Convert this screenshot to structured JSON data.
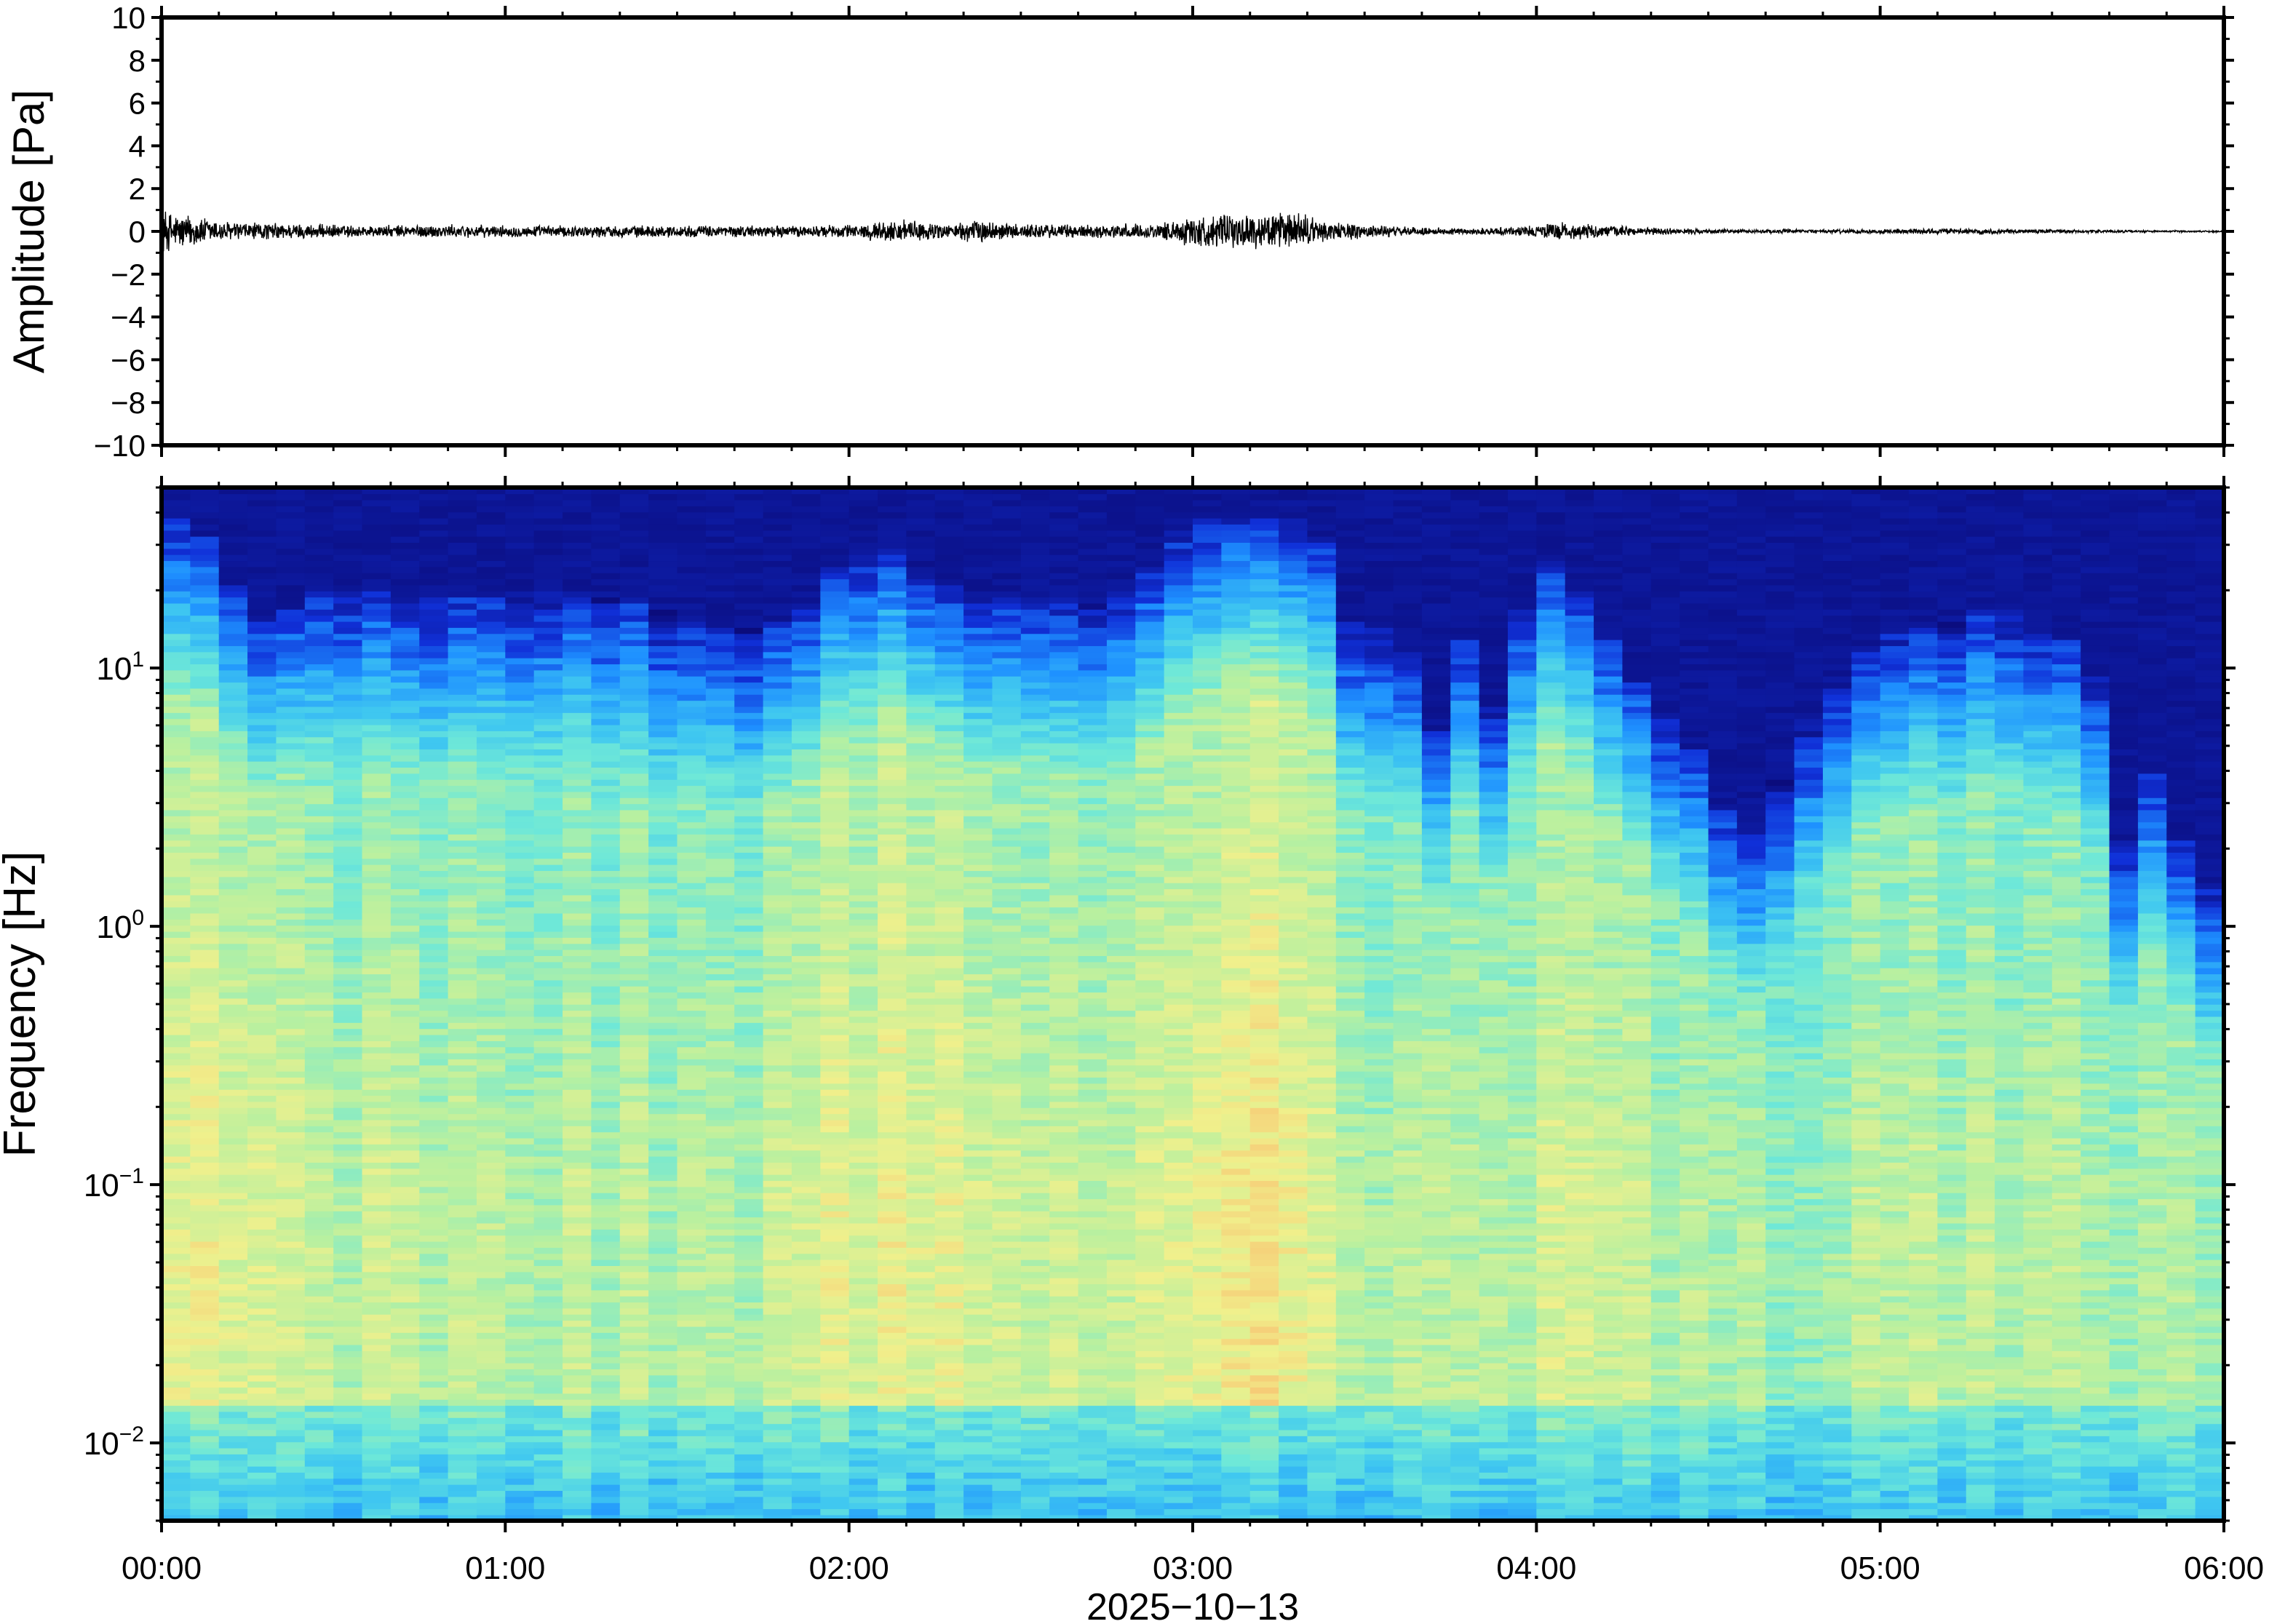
{
  "chart_data": [
    {
      "type": "line",
      "panel": "waveform",
      "title": "",
      "xlabel": "",
      "ylabel": "Amplitude [Pa]",
      "ylim": [
        -10,
        10
      ],
      "yticks": [
        10,
        8,
        6,
        4,
        2,
        0,
        -2,
        -4,
        -6,
        -8,
        -10
      ],
      "ytick_labels": [
        "10",
        "8",
        "6",
        "4",
        "2",
        "0",
        "−2",
        "−4",
        "−6",
        "−8",
        "−10"
      ],
      "x_unit": "hours since 2025-10-13 00:00",
      "xlim": [
        0,
        6
      ],
      "grid": false,
      "line_color": "#000000",
      "envelope": {
        "t": [
          0,
          0.03,
          0.1,
          0.2,
          0.4,
          0.6,
          0.8,
          1.0,
          1.3,
          1.6,
          1.9,
          2.0,
          2.15,
          2.3,
          2.35,
          2.5,
          2.7,
          2.9,
          3.0,
          3.1,
          3.2,
          3.3,
          3.4,
          3.6,
          3.8,
          4.0,
          4.05,
          4.2,
          4.4,
          4.6,
          4.8,
          5.0,
          5.2,
          5.5,
          5.8,
          6.0
        ],
        "amplitude": [
          1.2,
          1.0,
          0.8,
          0.5,
          0.4,
          0.3,
          0.35,
          0.3,
          0.3,
          0.3,
          0.3,
          0.35,
          0.6,
          0.35,
          0.6,
          0.4,
          0.35,
          0.4,
          0.8,
          0.85,
          0.9,
          1.0,
          0.5,
          0.25,
          0.15,
          0.3,
          0.5,
          0.3,
          0.15,
          0.1,
          0.1,
          0.12,
          0.15,
          0.1,
          0.05,
          0.05
        ]
      }
    },
    {
      "type": "heatmap",
      "panel": "spectrogram",
      "title": "",
      "xlabel": "2025−10−13",
      "ylabel": "Frequency [Hz]",
      "y_scale": "log",
      "ylim": [
        0.005,
        50
      ],
      "ytick_values": [
        0.01,
        0.1,
        1,
        10
      ],
      "ytick_labels": [
        {
          "base": "10",
          "exp": "−2"
        },
        {
          "base": "10",
          "exp": "−1"
        },
        {
          "base": "10",
          "exp": "0"
        },
        {
          "base": "10",
          "exp": "1"
        }
      ],
      "x_unit": "hours since 2025-10-13 00:00",
      "xlim": [
        0,
        6
      ],
      "xticks": [
        0,
        1,
        2,
        3,
        4,
        5,
        6
      ],
      "xtick_labels": [
        "00:00",
        "01:00",
        "02:00",
        "03:00",
        "04:00",
        "05:00",
        "06:00"
      ],
      "colormap": [
        "#0b0c7c",
        "#1030d8",
        "#1e90ff",
        "#40c8f0",
        "#6ee8d8",
        "#b8f0a0",
        "#f0f08c",
        "#f8c070",
        "#f09050"
      ],
      "upper_frequency_edge_hz": {
        "t": [
          0.0,
          0.15,
          0.25,
          0.4,
          0.5,
          0.7,
          1.0,
          1.3,
          1.5,
          1.7,
          1.85,
          2.0,
          2.15,
          2.3,
          2.5,
          2.7,
          2.85,
          3.0,
          3.2,
          3.35,
          3.45,
          3.6,
          3.7,
          3.8,
          3.9,
          4.0,
          4.1,
          4.25,
          4.4,
          4.55,
          4.65,
          4.75,
          4.9,
          5.05,
          5.2,
          5.35,
          5.45,
          5.6,
          5.7,
          5.8,
          5.9,
          6.0
        ],
        "freq": [
          40,
          30,
          14,
          18,
          22,
          18,
          20,
          20,
          16,
          14,
          16,
          28,
          30,
          20,
          20,
          18,
          22,
          38,
          38,
          38,
          15,
          14,
          5,
          14,
          5,
          28,
          22,
          10,
          6,
          3,
          2,
          5,
          10,
          14,
          15,
          18,
          14,
          12,
          2,
          4,
          1.5,
          1.5
        ]
      },
      "intensity": {
        "t": [
          0.0,
          0.3,
          0.6,
          1.0,
          1.4,
          1.7,
          2.0,
          2.2,
          2.5,
          2.8,
          3.0,
          3.3,
          3.45,
          3.7,
          3.9,
          4.1,
          4.4,
          4.7,
          5.0,
          5.3,
          5.6,
          5.8,
          6.0
        ],
        "level": [
          0.8,
          0.65,
          0.6,
          0.55,
          0.55,
          0.55,
          0.75,
          0.85,
          0.65,
          0.65,
          0.85,
          0.9,
          0.6,
          0.5,
          0.6,
          0.65,
          0.5,
          0.45,
          0.55,
          0.55,
          0.5,
          0.45,
          0.45
        ]
      }
    }
  ]
}
